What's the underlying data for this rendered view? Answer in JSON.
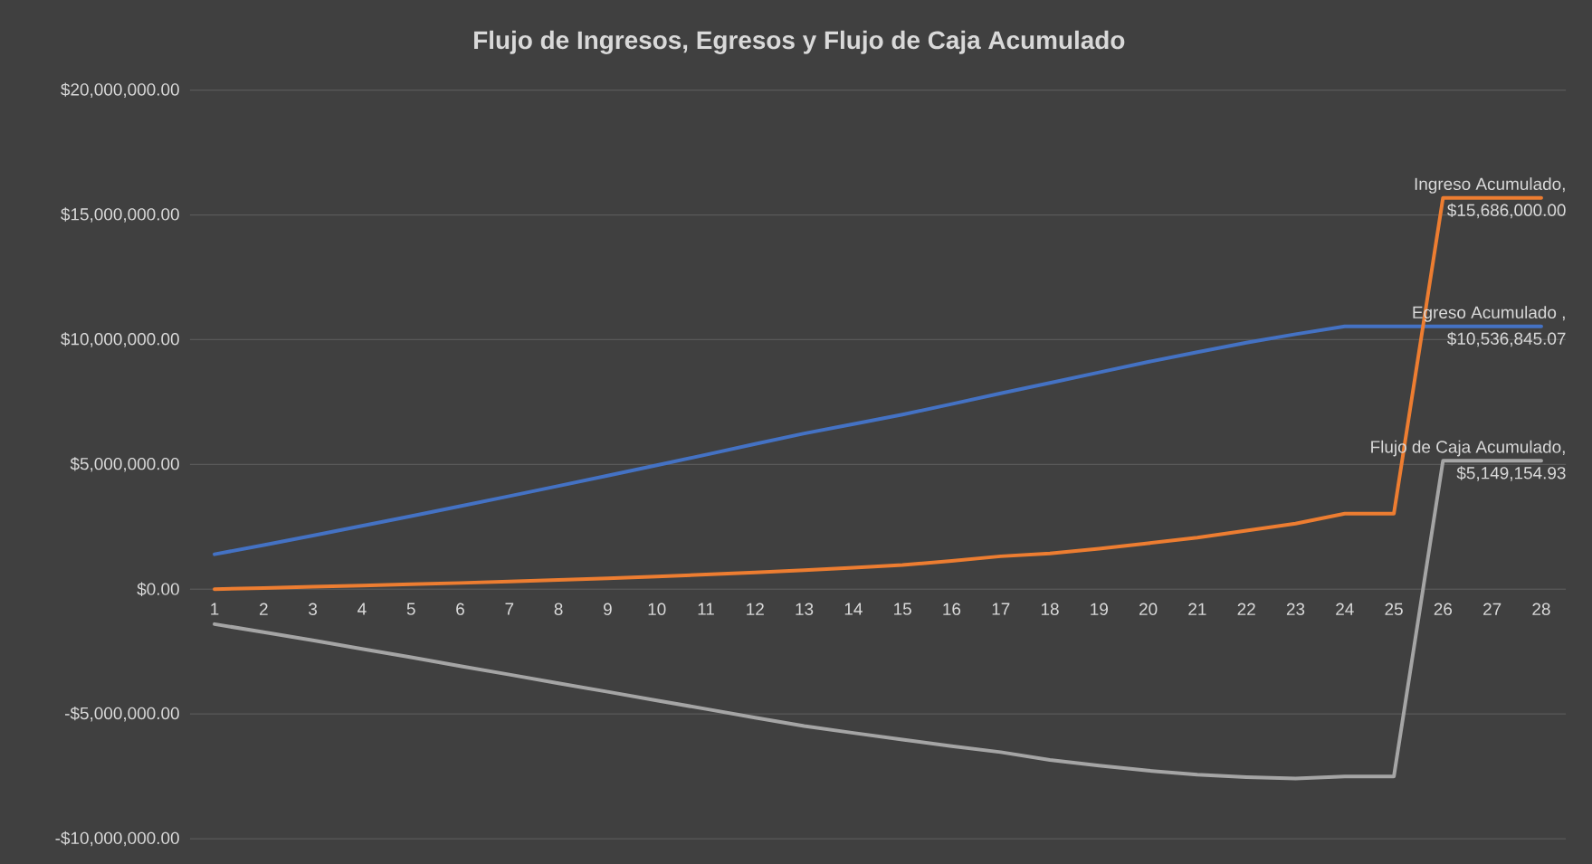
{
  "chart_data": {
    "type": "line",
    "title": "Flujo de Ingresos, Egresos y Flujo de Caja Acumulado",
    "categories": [
      "1",
      "2",
      "3",
      "4",
      "5",
      "6",
      "7",
      "8",
      "9",
      "10",
      "11",
      "12",
      "13",
      "14",
      "15",
      "16",
      "17",
      "18",
      "19",
      "20",
      "21",
      "22",
      "23",
      "24",
      "25",
      "26",
      "27",
      "28"
    ],
    "ylim": [
      -10000000,
      20000000
    ],
    "yticks": [
      {
        "value": -10000000,
        "label": "-$10,000,000.00"
      },
      {
        "value": -5000000,
        "label": "-$5,000,000.00"
      },
      {
        "value": 0,
        "label": "$0.00"
      },
      {
        "value": 5000000,
        "label": "$5,000,000.00"
      },
      {
        "value": 10000000,
        "label": "$10,000,000.00"
      },
      {
        "value": 15000000,
        "label": "$15,000,000.00"
      },
      {
        "value": 20000000,
        "label": "$20,000,000.00"
      }
    ],
    "grid": "y",
    "series": [
      {
        "name": "Egreso Acumulado ,",
        "color": "#4472c4",
        "values": [
          1400000,
          1770000,
          2150000,
          2540000,
          2930000,
          3330000,
          3730000,
          4140000,
          4550000,
          4970000,
          5390000,
          5820000,
          6240000,
          6620000,
          7000000,
          7420000,
          7850000,
          8270000,
          8690000,
          9110000,
          9500000,
          9880000,
          10220000,
          10536845.07,
          10536845.07,
          10536845.07,
          10536845.07,
          10536845.07
        ],
        "value_labels": [
          null,
          null,
          null,
          null,
          null,
          null,
          null,
          null,
          null,
          null,
          null,
          null,
          null,
          null,
          null,
          null,
          null,
          null,
          null,
          null,
          null,
          null,
          null,
          null,
          null,
          null,
          null,
          "$10,536,845.07"
        ]
      },
      {
        "name": "Ingreso Acumulado,",
        "color": "#ed7d31",
        "values": [
          0,
          50000,
          100000,
          150000,
          200000,
          250000,
          310000,
          370000,
          440000,
          510000,
          590000,
          670000,
          760000,
          860000,
          970000,
          1130000,
          1320000,
          1430000,
          1620000,
          1840000,
          2070000,
          2350000,
          2630000,
          3030000,
          3030000,
          15686000,
          15686000,
          15686000
        ],
        "value_labels": [
          null,
          null,
          null,
          null,
          null,
          null,
          null,
          null,
          null,
          null,
          null,
          null,
          null,
          null,
          null,
          null,
          null,
          null,
          null,
          null,
          null,
          null,
          null,
          null,
          null,
          null,
          null,
          "$15,686,000.00"
        ]
      },
      {
        "name": "Flujo de Caja Acumulado,",
        "color": "#a5a5a5",
        "values": [
          -1400000,
          -1720000,
          -2050000,
          -2390000,
          -2730000,
          -3080000,
          -3420000,
          -3770000,
          -4110000,
          -4460000,
          -4800000,
          -5150000,
          -5480000,
          -5760000,
          -6030000,
          -6290000,
          -6530000,
          -6840000,
          -7070000,
          -7270000,
          -7430000,
          -7530000,
          -7590000,
          -7506845.07,
          -7506845.07,
          5149154.93,
          5149154.93,
          5149154.93
        ],
        "value_labels": [
          null,
          null,
          null,
          null,
          null,
          null,
          null,
          null,
          null,
          null,
          null,
          null,
          null,
          null,
          null,
          null,
          null,
          null,
          null,
          null,
          null,
          null,
          null,
          null,
          null,
          null,
          null,
          "$5,149,154.93"
        ]
      }
    ]
  }
}
